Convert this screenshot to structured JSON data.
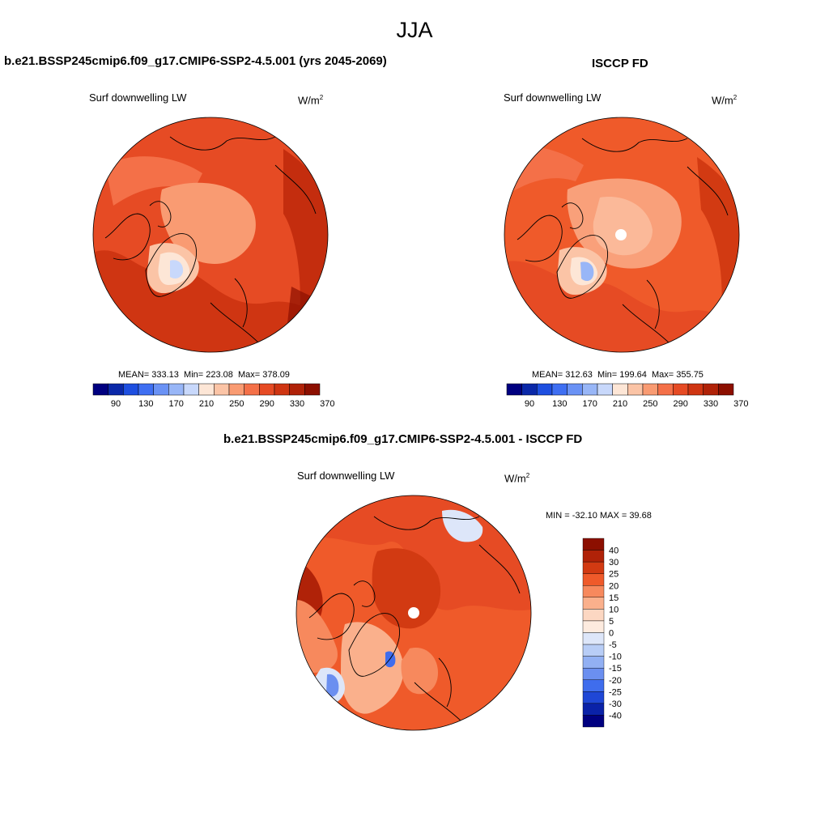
{
  "figure": {
    "title": "JJA"
  },
  "panels": [
    {
      "title": "b.e21.BSSP245cmip6.f09_g17.CMIP6-SSP2-4.5.001 (yrs 2045-2069)",
      "subtitle": "Surf downwelling LW",
      "units_base": "W/m",
      "units_exp": "2",
      "stats": {
        "mean": "333.13",
        "min": "223.08",
        "max": "378.09"
      },
      "colorbar_ticks": [
        "90",
        "130",
        "170",
        "210",
        "250",
        "290",
        "330",
        "370"
      ]
    },
    {
      "title": "ISCCP FD",
      "subtitle": "Surf downwelling LW",
      "units_base": "W/m",
      "units_exp": "2",
      "stats": {
        "mean": "312.63",
        "min": "199.64",
        "max": "355.75"
      },
      "colorbar_ticks": [
        "90",
        "130",
        "170",
        "210",
        "250",
        "290",
        "330",
        "370"
      ]
    },
    {
      "title": "b.e21.BSSP245cmip6.f09_g17.CMIP6-SSP2-4.5.001 - ISCCP FD",
      "subtitle": "Surf downwelling LW",
      "units_base": "W/m",
      "units_exp": "2",
      "stats_text": "MIN = -32.10 MAX =  39.68",
      "colorbar_ticks": [
        "40",
        "30",
        "25",
        "20",
        "15",
        "10",
        "5",
        "0",
        "-5",
        "-10",
        "-15",
        "-20",
        "-25",
        "-30",
        "-40"
      ]
    }
  ],
  "palettes": {
    "field": [
      "#000080",
      "#0a28a8",
      "#1e4fe0",
      "#3f6ff2",
      "#6a92f5",
      "#98b6f7",
      "#c8d8fb",
      "#fde6d6",
      "#fbc4a6",
      "#f99b72",
      "#f47048",
      "#e64b24",
      "#cf3512",
      "#b02208",
      "#8c0f00"
    ],
    "diff": [
      "#8c0f00",
      "#b02208",
      "#d23a12",
      "#ef5a2a",
      "#f7895d",
      "#fab08c",
      "#fcd7c2",
      "#fdebdf",
      "#dde6f9",
      "#b8cdf6",
      "#92b0f3",
      "#6b8ff0",
      "#3f6ded",
      "#1f47d6",
      "#0a22a8",
      "#000080"
    ]
  }
}
